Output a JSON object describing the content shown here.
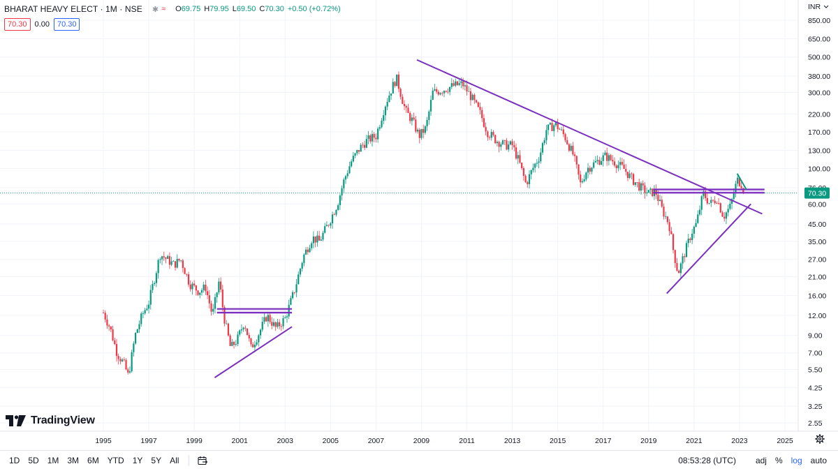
{
  "header": {
    "symbol": "BHARAT HEAVY ELECT · 1M · NSE",
    "ohlc": {
      "open_label": "O",
      "open": "69.75",
      "high_label": "H",
      "high": "79.95",
      "low_label": "L",
      "low": "69.50",
      "close_label": "C",
      "close": "70.30",
      "change": "+0.50 (+0.72%)"
    },
    "sell_price": "70.30",
    "spread": "0.00",
    "buy_price": "70.30"
  },
  "price_axis": {
    "currency": "INR",
    "current_price_label": "70.30",
    "current_price": 70.3,
    "current_price_color": "#089981"
  },
  "chart_data": {
    "type": "candlestick",
    "scale": "log",
    "ylim": [
      2.2,
      1000
    ],
    "xlim": [
      1994.8,
      2025.7
    ],
    "y_ticks": [
      2.55,
      3.25,
      4.25,
      5.5,
      7.0,
      9.0,
      12.0,
      16.0,
      21.0,
      27.0,
      35.0,
      45.0,
      60.0,
      76.0,
      100.0,
      130.0,
      170.0,
      220.0,
      300.0,
      380.0,
      500.0,
      650.0,
      850.0
    ],
    "y_tick_labels": [
      "2.55",
      "3.25",
      "4.25",
      "5.50",
      "7.00",
      "9.00",
      "12.00",
      "16.00",
      "21.00",
      "27.00",
      "35.00",
      "45.00",
      "60.00",
      "76.00",
      "100.00",
      "130.00",
      "170.00",
      "220.00",
      "300.00",
      "380.00",
      "500.00",
      "650.00",
      "850.00"
    ],
    "x_ticks": [
      "1995",
      "1997",
      "1999",
      "2001",
      "2003",
      "2005",
      "2007",
      "2009",
      "2011",
      "2013",
      "2015",
      "2017",
      "2019",
      "2021",
      "2023",
      "2025"
    ],
    "price_path": [
      [
        1995.0,
        12.5
      ],
      [
        1995.3,
        10.0
      ],
      [
        1995.6,
        7.0
      ],
      [
        1995.9,
        6.0
      ],
      [
        1996.1,
        5.0
      ],
      [
        1996.4,
        9.0
      ],
      [
        1996.7,
        12.0
      ],
      [
        1997.0,
        14.5
      ],
      [
        1997.3,
        22.0
      ],
      [
        1997.5,
        29.0
      ],
      [
        1997.8,
        27.0
      ],
      [
        1998.1,
        25.0
      ],
      [
        1998.4,
        27.0
      ],
      [
        1998.8,
        19.0
      ],
      [
        1999.2,
        17.0
      ],
      [
        1999.5,
        18.0
      ],
      [
        1999.8,
        12.0
      ],
      [
        2000.1,
        20.0
      ],
      [
        2000.3,
        12.0
      ],
      [
        2000.6,
        7.5
      ],
      [
        2000.9,
        8.5
      ],
      [
        2001.2,
        11.0
      ],
      [
        2001.5,
        7.5
      ],
      [
        2001.8,
        9.0
      ],
      [
        2002.2,
        12.0
      ],
      [
        2002.6,
        10.0
      ],
      [
        2003.0,
        11.5
      ],
      [
        2003.4,
        17.0
      ],
      [
        2003.8,
        28.0
      ],
      [
        2004.2,
        37.0
      ],
      [
        2004.5,
        35.0
      ],
      [
        2004.9,
        45.0
      ],
      [
        2005.3,
        60.0
      ],
      [
        2005.6,
        85.0
      ],
      [
        2005.9,
        110.0
      ],
      [
        2006.3,
        135.0
      ],
      [
        2006.6,
        150.0
      ],
      [
        2007.0,
        160.0
      ],
      [
        2007.4,
        250.0
      ],
      [
        2007.7,
        320.0
      ],
      [
        2007.9,
        370.0
      ],
      [
        2008.3,
        230.0
      ],
      [
        2008.6,
        200.0
      ],
      [
        2008.9,
        160.0
      ],
      [
        2009.2,
        180.0
      ],
      [
        2009.5,
        300.0
      ],
      [
        2009.9,
        310.0
      ],
      [
        2010.4,
        330.0
      ],
      [
        2010.8,
        340.0
      ],
      [
        2011.2,
        280.0
      ],
      [
        2011.6,
        220.0
      ],
      [
        2011.9,
        170.0
      ],
      [
        2012.3,
        150.0
      ],
      [
        2012.7,
        140.0
      ],
      [
        2013.0,
        140.0
      ],
      [
        2013.3,
        110.0
      ],
      [
        2013.6,
        80.0
      ],
      [
        2013.9,
        100.0
      ],
      [
        2014.2,
        120.0
      ],
      [
        2014.5,
        175.0
      ],
      [
        2014.9,
        190.0
      ],
      [
        2015.3,
        160.0
      ],
      [
        2015.7,
        120.0
      ],
      [
        2016.0,
        80.0
      ],
      [
        2016.3,
        100.0
      ],
      [
        2016.7,
        110.0
      ],
      [
        2017.1,
        120.0
      ],
      [
        2017.5,
        110.0
      ],
      [
        2017.9,
        100.0
      ],
      [
        2018.3,
        85.0
      ],
      [
        2018.7,
        75.0
      ],
      [
        2019.0,
        70.0
      ],
      [
        2019.3,
        72.0
      ],
      [
        2019.6,
        55.0
      ],
      [
        2019.9,
        45.0
      ],
      [
        2020.1,
        30.0
      ],
      [
        2020.3,
        22.0
      ],
      [
        2020.6,
        30.0
      ],
      [
        2020.9,
        40.0
      ],
      [
        2021.1,
        45.0
      ],
      [
        2021.4,
        70.0
      ],
      [
        2021.7,
        60.0
      ],
      [
        2022.0,
        65.0
      ],
      [
        2022.3,
        50.0
      ],
      [
        2022.6,
        58.0
      ],
      [
        2022.9,
        85.0
      ],
      [
        2023.1,
        80.0
      ],
      [
        2023.2,
        70.3
      ]
    ],
    "trendlines": [
      {
        "points": [
          [
            1999.9,
            4.9
          ],
          [
            2003.3,
            10.2
          ]
        ],
        "color": "#7b2fbf"
      },
      {
        "points": [
          [
            2008.8,
            480.0
          ],
          [
            2024.0,
            52.0
          ]
        ],
        "color": "#7b2fbf"
      },
      {
        "points": [
          [
            2019.8,
            16.5
          ],
          [
            2023.5,
            60.0
          ]
        ],
        "color": "#7b2fbf"
      },
      {
        "points": [
          [
            2022.9,
            93.0
          ],
          [
            2023.3,
            74.0
          ]
        ],
        "color": "#089981"
      }
    ],
    "horizontal_bands": [
      {
        "x": [
          2000.0,
          2003.3
        ],
        "y": [
          12.5,
          13.2
        ],
        "color": "#7b2fbf"
      },
      {
        "x": [
          2019.2,
          2024.1
        ],
        "y": [
          70.5,
          74.0
        ],
        "color": "#7b2fbf"
      }
    ],
    "up_color": "#089981",
    "down_color": "#f23645"
  },
  "watermark": {
    "text": "TradingView"
  },
  "bottom_bar": {
    "timeframes": [
      "1D",
      "5D",
      "1M",
      "3M",
      "6M",
      "YTD",
      "1Y",
      "5Y",
      "All"
    ],
    "clock": "08:53:28 (UTC)",
    "adj": "adj",
    "percent": "%",
    "log": "log",
    "auto": "auto"
  }
}
